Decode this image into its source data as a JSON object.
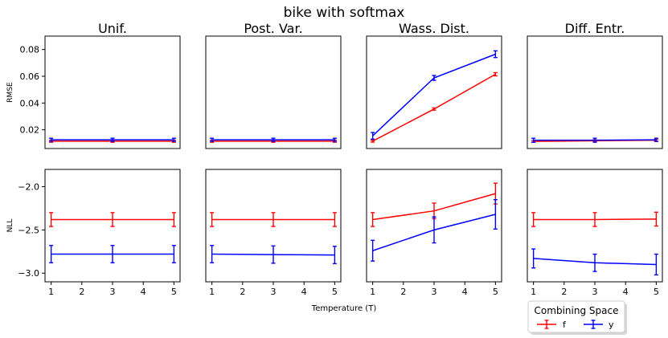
{
  "chart_data": {
    "type": "line",
    "title": "bike with softmax",
    "xlabel": "Temperature (T)",
    "x_ticks": [
      1,
      2,
      3,
      4,
      5
    ],
    "column_titles": [
      "Unif.",
      "Post. Var.",
      "Wass. Dist.",
      "Diff. Entr."
    ],
    "legend": {
      "title": "Combining Space",
      "entries": [
        "f",
        "y"
      ],
      "placement": "bottom-right"
    },
    "rows": [
      {
        "ylabel": "RMSE",
        "ylim": [
          0.006,
          0.09
        ],
        "yticks": [
          0.02,
          0.04,
          0.06,
          0.08
        ],
        "ytick_labels": [
          "0.02",
          "0.04",
          "0.06",
          "0.08"
        ],
        "panels": [
          {
            "series": [
              {
                "name": "f",
                "color": "#ff0000",
                "x": [
                  1,
                  3,
                  5
                ],
                "y": [
                  0.0115,
                  0.0115,
                  0.0115
                ],
                "err": [
                  0.0008,
                  0.0008,
                  0.0008
                ]
              },
              {
                "name": "y",
                "color": "#0000ff",
                "x": [
                  1,
                  3,
                  5
                ],
                "y": [
                  0.0125,
                  0.0125,
                  0.0125
                ],
                "err": [
                  0.0012,
                  0.0012,
                  0.0012
                ]
              }
            ]
          },
          {
            "series": [
              {
                "name": "f",
                "color": "#ff0000",
                "x": [
                  1,
                  3,
                  5
                ],
                "y": [
                  0.0115,
                  0.0115,
                  0.0115
                ],
                "err": [
                  0.0008,
                  0.0008,
                  0.0008
                ]
              },
              {
                "name": "y",
                "color": "#0000ff",
                "x": [
                  1,
                  3,
                  5
                ],
                "y": [
                  0.0125,
                  0.0125,
                  0.0125
                ],
                "err": [
                  0.0012,
                  0.0012,
                  0.0012
                ]
              }
            ]
          },
          {
            "series": [
              {
                "name": "f",
                "color": "#ff0000",
                "x": [
                  1,
                  3,
                  5
                ],
                "y": [
                  0.0115,
                  0.0355,
                  0.0615
                ],
                "err": [
                  0.0007,
                  0.0008,
                  0.0012
                ]
              },
              {
                "name": "y",
                "color": "#0000ff",
                "x": [
                  1,
                  3,
                  5
                ],
                "y": [
                  0.0155,
                  0.0588,
                  0.0765
                ],
                "err": [
                  0.0025,
                  0.0018,
                  0.0025
                ]
              }
            ]
          },
          {
            "series": [
              {
                "name": "f",
                "color": "#ff0000",
                "x": [
                  1,
                  3,
                  5
                ],
                "y": [
                  0.0113,
                  0.0118,
                  0.0122
                ],
                "err": [
                  0.0007,
                  0.0007,
                  0.0007
                ]
              },
              {
                "name": "y",
                "color": "#0000ff",
                "x": [
                  1,
                  3,
                  5
                ],
                "y": [
                  0.0122,
                  0.0122,
                  0.0125
                ],
                "err": [
                  0.0015,
                  0.0015,
                  0.0012
                ]
              }
            ]
          }
        ]
      },
      {
        "ylabel": "NLL",
        "ylim": [
          -3.1,
          -1.8
        ],
        "yticks": [
          -3.0,
          -2.5,
          -2.0
        ],
        "ytick_labels": [
          "−3.0",
          "−2.5",
          "−2.0"
        ],
        "panels": [
          {
            "series": [
              {
                "name": "f",
                "color": "#ff0000",
                "x": [
                  1,
                  3,
                  5
                ],
                "y": [
                  -2.38,
                  -2.38,
                  -2.38
                ],
                "err": [
                  0.08,
                  0.08,
                  0.08
                ]
              },
              {
                "name": "y",
                "color": "#0000ff",
                "x": [
                  1,
                  3,
                  5
                ],
                "y": [
                  -2.78,
                  -2.78,
                  -2.78
                ],
                "err": [
                  0.1,
                  0.1,
                  0.1
                ]
              }
            ]
          },
          {
            "series": [
              {
                "name": "f",
                "color": "#ff0000",
                "x": [
                  1,
                  3,
                  5
                ],
                "y": [
                  -2.38,
                  -2.38,
                  -2.38
                ],
                "err": [
                  0.08,
                  0.08,
                  0.08
                ]
              },
              {
                "name": "y",
                "color": "#0000ff",
                "x": [
                  1,
                  3,
                  5
                ],
                "y": [
                  -2.78,
                  -2.785,
                  -2.79
                ],
                "err": [
                  0.1,
                  0.1,
                  0.1
                ]
              }
            ]
          },
          {
            "series": [
              {
                "name": "f",
                "color": "#ff0000",
                "x": [
                  1,
                  3,
                  5
                ],
                "y": [
                  -2.38,
                  -2.28,
                  -2.08
                ],
                "err": [
                  0.08,
                  0.09,
                  0.12
                ]
              },
              {
                "name": "y",
                "color": "#0000ff",
                "x": [
                  1,
                  3,
                  5
                ],
                "y": [
                  -2.74,
                  -2.5,
                  -2.32
                ],
                "err": [
                  0.12,
                  0.15,
                  0.17
                ]
              }
            ]
          },
          {
            "series": [
              {
                "name": "f",
                "color": "#ff0000",
                "x": [
                  1,
                  3,
                  5
                ],
                "y": [
                  -2.38,
                  -2.38,
                  -2.375
                ],
                "err": [
                  0.08,
                  0.08,
                  0.08
                ]
              },
              {
                "name": "y",
                "color": "#0000ff",
                "x": [
                  1,
                  3,
                  5
                ],
                "y": [
                  -2.83,
                  -2.88,
                  -2.9
                ],
                "err": [
                  0.11,
                  0.1,
                  0.12
                ]
              }
            ]
          }
        ]
      }
    ]
  }
}
